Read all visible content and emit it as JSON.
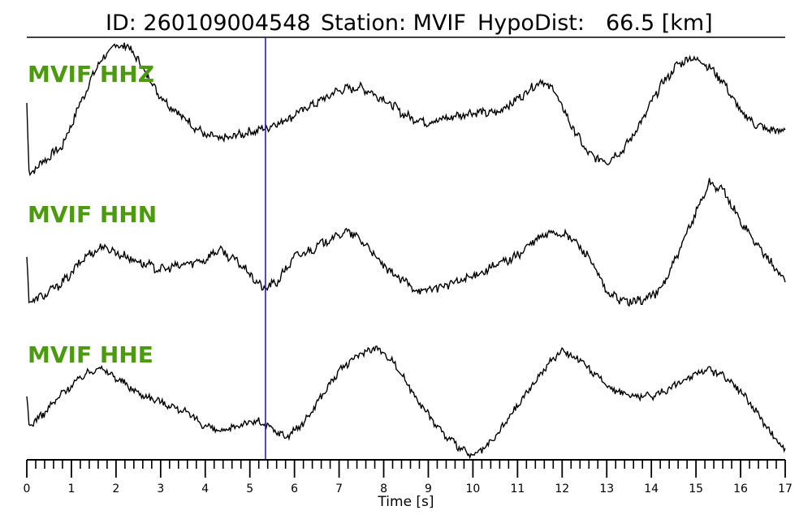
{
  "title": {
    "id_text": "ID: 260109004548",
    "station_text": "Station: MVIF",
    "dist_text": "HypoDist:",
    "dist_value": "66.5 [km]"
  },
  "chart_data": {
    "type": "line",
    "xlabel": "Time [s]",
    "xlim": [
      0,
      17
    ],
    "x_major_ticks": [
      0,
      1,
      2,
      3,
      4,
      5,
      6,
      7,
      8,
      9,
      10,
      11,
      12,
      13,
      14,
      15,
      16,
      17
    ],
    "x_minor_step": 0.2,
    "pick_time": 5.35,
    "pick_color": "#1f1fcf",
    "label_color": "#4c9a0e",
    "trace_color": "#000000",
    "y_units": "normalized amplitude (0 = bottom of channel band, 1 = top)",
    "series": [
      {
        "name": "MVIF HHZ",
        "x": [
          0,
          0.05,
          0.3,
          0.8,
          1.2,
          1.6,
          2.0,
          2.3,
          2.6,
          3.0,
          3.4,
          4.0,
          4.4,
          4.8,
          5.3,
          5.8,
          6.2,
          6.6,
          7.0,
          7.5,
          8.0,
          8.5,
          9.0,
          9.5,
          10.0,
          10.5,
          11.0,
          11.5,
          11.8,
          12.2,
          12.6,
          13.0,
          13.4,
          13.8,
          14.2,
          14.6,
          14.9,
          15.2,
          15.6,
          16.0,
          16.4,
          16.8,
          17.0
        ],
        "y": [
          0.55,
          0.0,
          0.08,
          0.22,
          0.55,
          0.85,
          1.0,
          0.98,
          0.82,
          0.6,
          0.47,
          0.3,
          0.27,
          0.31,
          0.35,
          0.42,
          0.5,
          0.57,
          0.65,
          0.67,
          0.58,
          0.45,
          0.4,
          0.44,
          0.48,
          0.47,
          0.58,
          0.72,
          0.66,
          0.38,
          0.15,
          0.1,
          0.2,
          0.42,
          0.68,
          0.85,
          0.9,
          0.86,
          0.72,
          0.48,
          0.37,
          0.33,
          0.35
        ]
      },
      {
        "name": "MVIF HHN",
        "x": [
          0,
          0.05,
          0.4,
          0.9,
          1.3,
          1.7,
          2.1,
          2.6,
          3.0,
          3.4,
          4.0,
          4.3,
          4.8,
          5.3,
          5.6,
          6.0,
          6.4,
          6.8,
          7.2,
          7.6,
          8.0,
          8.4,
          8.8,
          9.2,
          9.6,
          10.0,
          10.5,
          11.0,
          11.4,
          11.8,
          12.2,
          12.6,
          13.0,
          13.4,
          13.8,
          14.2,
          14.6,
          15.0,
          15.3,
          15.6,
          16.0,
          16.4,
          16.8,
          17.0
        ],
        "y": [
          0.4,
          0.05,
          0.1,
          0.23,
          0.4,
          0.48,
          0.42,
          0.35,
          0.3,
          0.33,
          0.38,
          0.46,
          0.34,
          0.15,
          0.2,
          0.4,
          0.46,
          0.54,
          0.6,
          0.5,
          0.32,
          0.22,
          0.13,
          0.16,
          0.2,
          0.25,
          0.33,
          0.41,
          0.53,
          0.6,
          0.55,
          0.4,
          0.12,
          0.05,
          0.06,
          0.14,
          0.42,
          0.75,
          0.98,
          0.92,
          0.68,
          0.48,
          0.3,
          0.22
        ]
      },
      {
        "name": "MVIF HHE",
        "x": [
          0,
          0.05,
          0.4,
          0.8,
          1.2,
          1.6,
          2.0,
          2.5,
          3.0,
          3.5,
          4.0,
          4.4,
          4.8,
          5.2,
          5.8,
          6.2,
          6.6,
          7.0,
          7.4,
          7.8,
          8.2,
          8.6,
          9.0,
          9.4,
          9.8,
          10.0,
          10.4,
          10.8,
          11.2,
          11.6,
          12.0,
          12.4,
          12.8,
          13.2,
          13.6,
          14.0,
          14.4,
          14.8,
          15.2,
          15.6,
          16.0,
          16.4,
          16.8,
          17.0
        ],
        "y": [
          0.55,
          0.28,
          0.4,
          0.58,
          0.72,
          0.82,
          0.72,
          0.58,
          0.5,
          0.42,
          0.28,
          0.22,
          0.3,
          0.32,
          0.18,
          0.3,
          0.55,
          0.78,
          0.92,
          1.0,
          0.88,
          0.62,
          0.38,
          0.18,
          0.05,
          0.0,
          0.12,
          0.35,
          0.58,
          0.8,
          0.98,
          0.88,
          0.72,
          0.6,
          0.55,
          0.55,
          0.62,
          0.72,
          0.8,
          0.75,
          0.6,
          0.38,
          0.15,
          0.05
        ]
      }
    ]
  }
}
